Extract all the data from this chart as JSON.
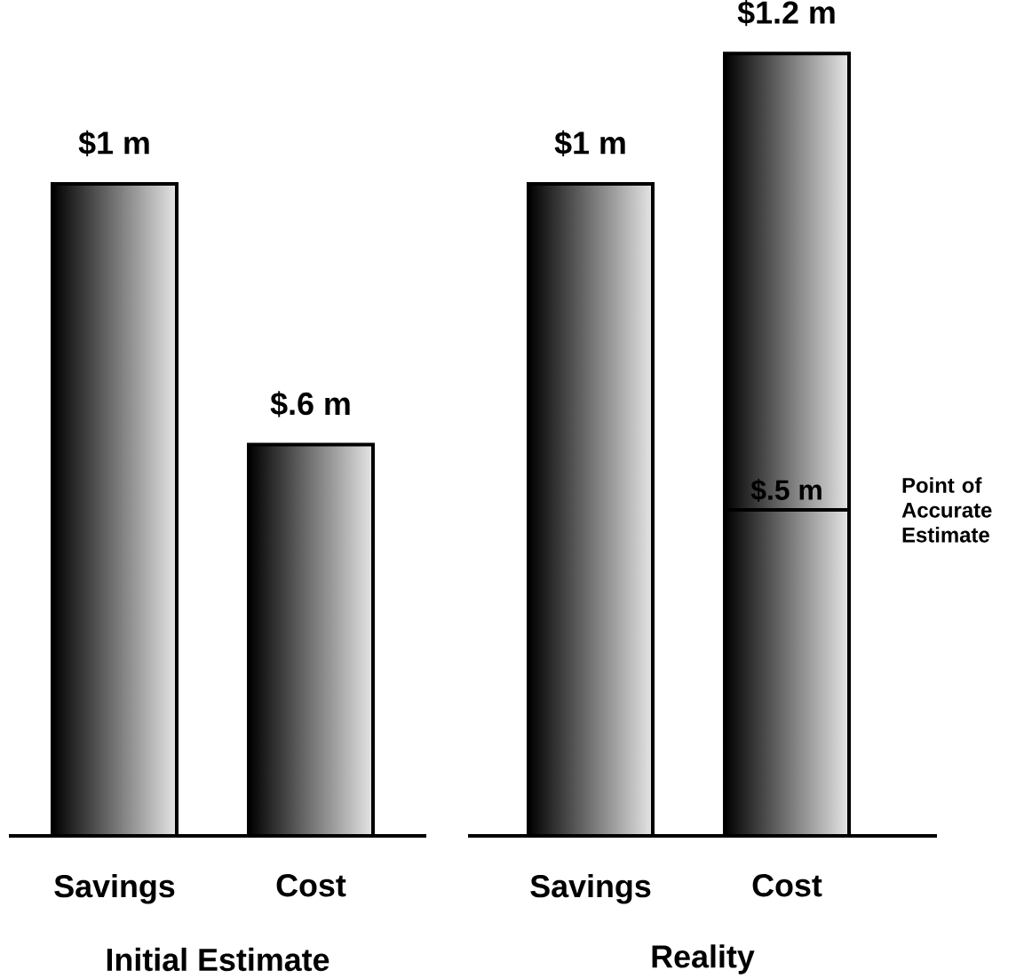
{
  "chart_data": [
    {
      "type": "bar",
      "xlabel": "Initial Estimate",
      "categories": [
        "Savings",
        "Cost"
      ],
      "values": [
        1,
        0.6
      ],
      "color": "#7f7f7f",
      "value_labels": [
        "$1 m",
        "$.6 m"
      ]
    },
    {
      "type": "bar",
      "xlabel": "Reality",
      "categories": [
        "Savings",
        "Cost"
      ],
      "stacked": true,
      "series": [
        {
          "color": "#7f7f7f",
          "values": [
            1,
            0.5
          ],
          "value_labels": [
            "$1 m",
            "$.5 m"
          ]
        },
        {
          "color": "#7f7f7f",
          "values": [
            null,
            0.7
          ]
        }
      ],
      "totals": [
        null,
        "$1.2 m"
      ],
      "annotations": [
        "Point of Accurate Estimate"
      ]
    }
  ]
}
